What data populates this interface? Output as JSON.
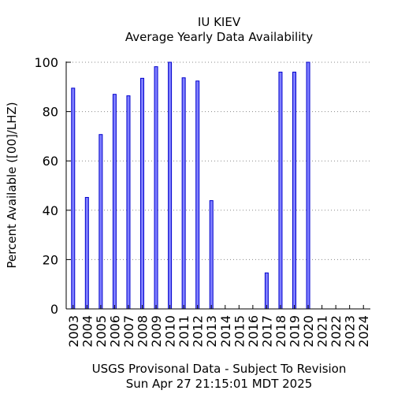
{
  "chart_data": {
    "type": "bar",
    "title": "IU KIEV",
    "subtitle": "Average Yearly Data Availability",
    "ylabel": "Percent Available ([00]/LHZ)",
    "xlabel": "",
    "ylim": [
      0,
      100
    ],
    "yticks": [
      0,
      20,
      40,
      60,
      80,
      100
    ],
    "grid": "horizontal dotted",
    "bar_color": "#7f7fff",
    "bar_edge": "#0000cc",
    "categories": [
      "2003",
      "2004",
      "2005",
      "2006",
      "2007",
      "2008",
      "2009",
      "2010",
      "2011",
      "2012",
      "2013",
      "2014",
      "2015",
      "2016",
      "2017",
      "2018",
      "2019",
      "2020",
      "2021",
      "2022",
      "2023",
      "2024"
    ],
    "values": [
      89.5,
      45.2,
      70.7,
      87.0,
      86.4,
      93.5,
      98.2,
      100,
      93.7,
      92.4,
      43.9,
      0,
      0,
      0,
      14.6,
      96.0,
      96.0,
      100,
      0,
      0,
      0,
      0
    ]
  },
  "footer": {
    "line1": "USGS Provisonal Data - Subject To Revision",
    "line2": "Sun Apr 27 21:15:01 MDT 2025"
  }
}
